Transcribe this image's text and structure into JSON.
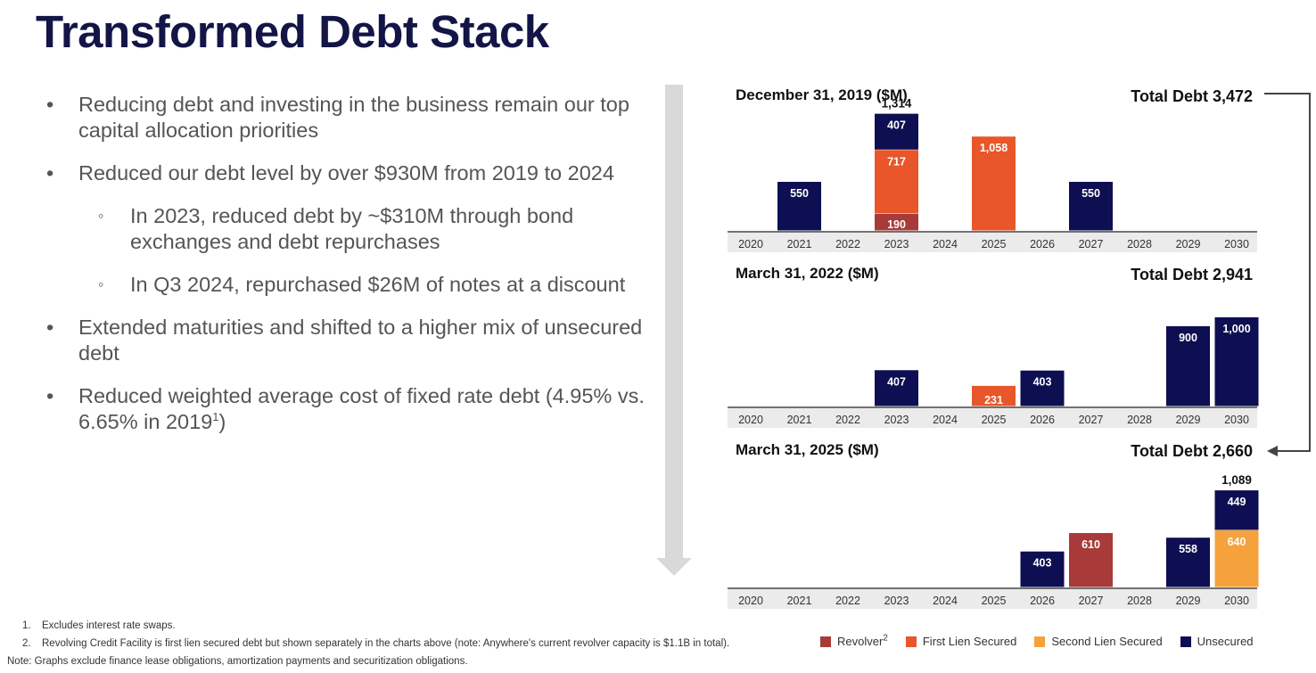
{
  "title": "Transformed Debt Stack",
  "bullets": [
    {
      "level": 1,
      "text": "Reducing debt and investing in the business remain our top capital allocation priorities"
    },
    {
      "level": 1,
      "text": "Reduced our debt level by over $930M from 2019 to 2024"
    },
    {
      "level": 2,
      "text": "In 2023, reduced debt by ~$310M through bond exchanges and debt repurchases"
    },
    {
      "level": 2,
      "text": "In Q3 2024, repurchased $26M of notes at a discount"
    },
    {
      "level": 1,
      "text": "Extended maturities and shifted to a higher mix of unsecured debt"
    },
    {
      "level": 1,
      "text": "Reduced weighted average cost of fixed rate debt (4.95% vs. 6.65% in 2019",
      "sup": "1",
      "tail": ")"
    }
  ],
  "footnotes": [
    {
      "num": "1.",
      "text": "Excludes interest rate swaps."
    },
    {
      "num": "2.",
      "text": "Revolving Credit Facility is first lien secured debt but shown separately in the charts above (note: Anywhere's current revolver capacity is $1.1B in total)."
    }
  ],
  "note": "Note:  Graphs exclude finance lease obligations, amortization payments and securitization obligations.",
  "legend": [
    {
      "key": "revolver",
      "label": "Revolver",
      "sup": "2",
      "color": "#A93A3A"
    },
    {
      "key": "first_lien",
      "label": "First Lien Secured",
      "color": "#E8562A"
    },
    {
      "key": "second_lien",
      "label": "Second Lien Secured",
      "color": "#F5A13C"
    },
    {
      "key": "unsecured",
      "label": "Unsecured",
      "color": "#0E0E52"
    }
  ],
  "chart_data": [
    {
      "type": "bar",
      "stacked": true,
      "title": "December 31, 2019 ($M)",
      "total_label": "Total Debt 3,472",
      "categories": [
        "2020",
        "2021",
        "2022",
        "2023",
        "2024",
        "2025",
        "2026",
        "2027",
        "2028",
        "2029",
        "2030"
      ],
      "series": [
        {
          "key": "revolver",
          "name": "Revolver",
          "values": [
            0,
            0,
            0,
            190,
            0,
            0,
            0,
            0,
            0,
            0,
            0
          ]
        },
        {
          "key": "first_lien",
          "name": "First Lien Secured",
          "values": [
            0,
            0,
            0,
            717,
            0,
            1058,
            0,
            0,
            0,
            0,
            0
          ]
        },
        {
          "key": "second_lien",
          "name": "Second Lien Secured",
          "values": [
            0,
            0,
            0,
            0,
            0,
            0,
            0,
            0,
            0,
            0,
            0
          ]
        },
        {
          "key": "unsecured",
          "name": "Unsecured",
          "values": [
            0,
            550,
            0,
            407,
            0,
            0,
            0,
            550,
            0,
            0,
            0
          ]
        }
      ],
      "totals": {
        "2023": "1,314"
      }
    },
    {
      "type": "bar",
      "stacked": true,
      "title": "March 31, 2022 ($M)",
      "total_label": "Total Debt 2,941",
      "categories": [
        "2020",
        "2021",
        "2022",
        "2023",
        "2024",
        "2025",
        "2026",
        "2027",
        "2028",
        "2029",
        "2030"
      ],
      "series": [
        {
          "key": "revolver",
          "name": "Revolver",
          "values": [
            0,
            0,
            0,
            0,
            0,
            0,
            0,
            0,
            0,
            0,
            0
          ]
        },
        {
          "key": "first_lien",
          "name": "First Lien Secured",
          "values": [
            0,
            0,
            0,
            0,
            0,
            231,
            0,
            0,
            0,
            0,
            0
          ]
        },
        {
          "key": "second_lien",
          "name": "Second Lien Secured",
          "values": [
            0,
            0,
            0,
            0,
            0,
            0,
            0,
            0,
            0,
            0,
            0
          ]
        },
        {
          "key": "unsecured",
          "name": "Unsecured",
          "values": [
            0,
            0,
            0,
            407,
            0,
            0,
            403,
            0,
            0,
            900,
            1000
          ]
        }
      ],
      "totals": {}
    },
    {
      "type": "bar",
      "stacked": true,
      "title": "March 31, 2025 ($M)",
      "total_label": "Total Debt 2,660",
      "categories": [
        "2020",
        "2021",
        "2022",
        "2023",
        "2024",
        "2025",
        "2026",
        "2027",
        "2028",
        "2029",
        "2030"
      ],
      "series": [
        {
          "key": "revolver",
          "name": "Revolver",
          "values": [
            0,
            0,
            0,
            0,
            0,
            0,
            0,
            610,
            0,
            0,
            0
          ]
        },
        {
          "key": "first_lien",
          "name": "First Lien Secured",
          "values": [
            0,
            0,
            0,
            0,
            0,
            0,
            0,
            0,
            0,
            0,
            0
          ]
        },
        {
          "key": "second_lien",
          "name": "Second Lien Secured",
          "values": [
            0,
            0,
            0,
            0,
            0,
            0,
            0,
            0,
            0,
            0,
            640
          ]
        },
        {
          "key": "unsecured",
          "name": "Unsecured",
          "values": [
            0,
            0,
            0,
            0,
            0,
            0,
            403,
            0,
            0,
            558,
            449
          ]
        }
      ],
      "totals": {
        "2030": "1,089"
      }
    }
  ]
}
